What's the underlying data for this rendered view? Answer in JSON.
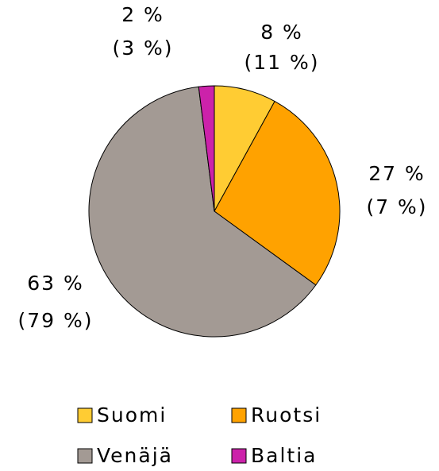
{
  "chart_data": {
    "type": "pie",
    "categories": [
      "Suomi",
      "Ruotsi",
      "Venäjä",
      "Baltia"
    ],
    "values": [
      8,
      27,
      63,
      2
    ],
    "value_labels": [
      "8 %",
      "27 %",
      "63 %",
      "2 %"
    ],
    "values2": [
      11,
      7,
      79,
      3
    ],
    "value2_labels": [
      "(11 %)",
      "(7 %)",
      "(79 %)",
      "(3 %)"
    ],
    "colors": [
      "#ffcc33",
      "#ffa200",
      "#a39a94",
      "#cc22aa"
    ]
  }
}
